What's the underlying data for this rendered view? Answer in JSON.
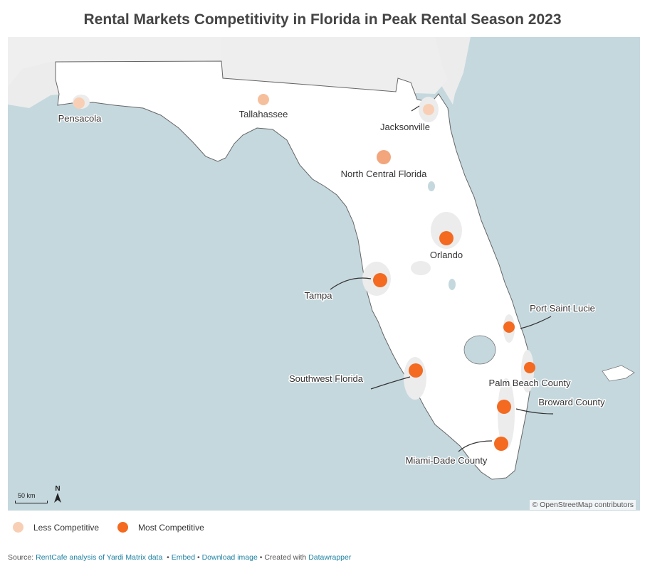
{
  "title": "Rental Markets Competitivity in Florida in Peak Rental Season 2023",
  "colors": {
    "water": "#c5d8de",
    "land_outside": "#f0f0f0",
    "land_florida": "#ffffff",
    "less_competitive": "#f8cfb4",
    "mid_competitive": "#f3a57c",
    "most_competitive": "#f36a20"
  },
  "markers": [
    {
      "name": "Pensacola",
      "level": "less"
    },
    {
      "name": "Tallahassee",
      "level": "less_mid"
    },
    {
      "name": "Jacksonville",
      "level": "less"
    },
    {
      "name": "North Central Florida",
      "level": "mid"
    },
    {
      "name": "Orlando",
      "level": "most"
    },
    {
      "name": "Tampa",
      "level": "most"
    },
    {
      "name": "Port Saint Lucie",
      "level": "most"
    },
    {
      "name": "Palm Beach County",
      "level": "most"
    },
    {
      "name": "Southwest Florida",
      "level": "most"
    },
    {
      "name": "Broward County",
      "level": "most"
    },
    {
      "name": "Miami-Dade County",
      "level": "most"
    }
  ],
  "scale_label": "50 km",
  "north_label": "N",
  "attribution": "© OpenStreetMap contributors",
  "legend": {
    "less": "Less Competitive",
    "most": "Most Competitive"
  },
  "footer": {
    "source_prefix": "Source:",
    "source_link": "RentCafe analysis of Yardi Matrix data",
    "embed": "Embed",
    "download": "Download image",
    "created_prefix": "Created with",
    "created_link": "Datawrapper",
    "sep": "•"
  }
}
